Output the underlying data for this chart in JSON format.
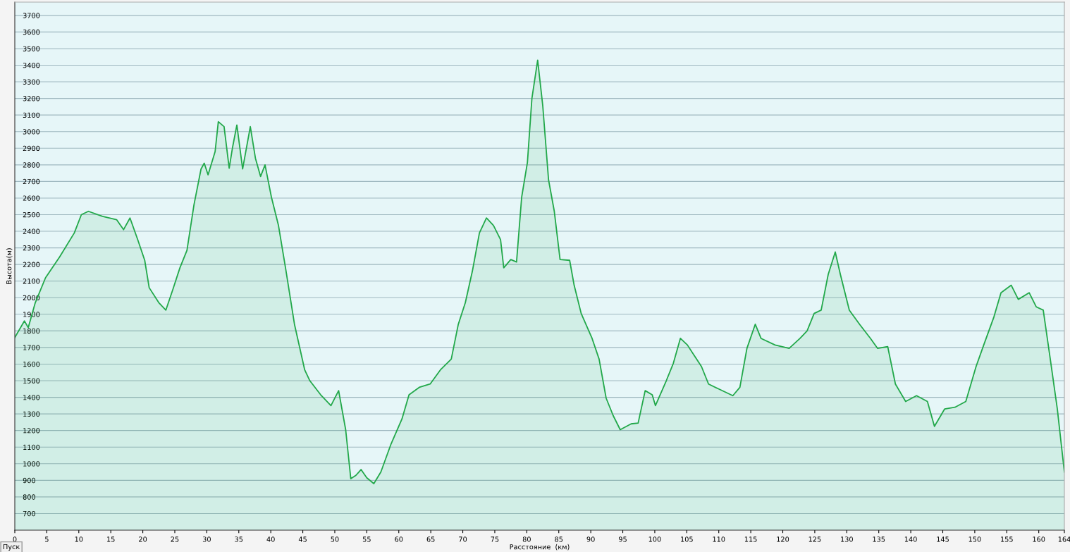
{
  "chart_data": {
    "type": "area",
    "xlabel": "Расстояние  (км)",
    "ylabel": "Высота(м)",
    "annotations": [
      "Пуск"
    ],
    "x": [
      0,
      1.5,
      2.1,
      3.2,
      4.8,
      7,
      9.3,
      10.4,
      11.5,
      13.7,
      15.9,
      17,
      18,
      19.2,
      20.3,
      21,
      22.5,
      23.6,
      24.7,
      25.8,
      26.9,
      28,
      29.1,
      29.6,
      30.2,
      31.3,
      31.8,
      32.7,
      33.5,
      34,
      34.7,
      35.6,
      36.8,
      37.6,
      38.4,
      39.1,
      40.1,
      41.2,
      42.3,
      43.7,
      45.3,
      46.1,
      47.8,
      49.4,
      50.6,
      51.7,
      52.5,
      53.3,
      54.1,
      55,
      56.1,
      57.2,
      58.8,
      60.5,
      61.6,
      63.2,
      64.9,
      66.5,
      68.2,
      69.3,
      70.4,
      71.5,
      72.6,
      73.7,
      74.8,
      75.9,
      76.4,
      77.5,
      78.4,
      79.2,
      80.1,
      80.8,
      81.7,
      82.5,
      83.4,
      84.3,
      85.2,
      86.7,
      87.4,
      88.5,
      90.2,
      91.3,
      92.4,
      93.5,
      94.6,
      96.3,
      97.4,
      98.5,
      99.6,
      100.1,
      101.8,
      102.9,
      104,
      105.1,
      106.2,
      107.3,
      108.4,
      110,
      112.2,
      113.3,
      114.4,
      115.7,
      116.6,
      118.8,
      121,
      122.7,
      123.8,
      124.9,
      126,
      127.1,
      128.2,
      129,
      130.4,
      132,
      133.7,
      134.8,
      136.4,
      137.6,
      139.2,
      140.9,
      142.6,
      143.7,
      145.3,
      146.9,
      148.6,
      150.2,
      151.4,
      153,
      154.1,
      155.7,
      156.8,
      158.5,
      159.6,
      160.7,
      161.8,
      162.9,
      164
    ],
    "series": [
      {
        "color": "#22a84a",
        "values": [
          1760,
          1860,
          1820,
          1970,
          2120,
          2245,
          2390,
          2500,
          2520,
          2490,
          2470,
          2410,
          2480,
          2350,
          2225,
          2060,
          1970,
          1925,
          2050,
          2180,
          2285,
          2560,
          2775,
          2810,
          2740,
          2880,
          3060,
          3030,
          2780,
          2900,
          3040,
          2775,
          3030,
          2840,
          2730,
          2800,
          2605,
          2435,
          2180,
          1840,
          1565,
          1500,
          1415,
          1350,
          1440,
          1205,
          910,
          930,
          965,
          915,
          880,
          950,
          1120,
          1270,
          1415,
          1460,
          1480,
          1565,
          1630,
          1840,
          1970,
          2160,
          2390,
          2480,
          2435,
          2350,
          2180,
          2230,
          2215,
          2605,
          2815,
          3200,
          3430,
          3155,
          2710,
          2520,
          2230,
          2225,
          2075,
          1905,
          1755,
          1630,
          1395,
          1290,
          1205,
          1240,
          1245,
          1440,
          1415,
          1350,
          1500,
          1605,
          1755,
          1715,
          1650,
          1585,
          1480,
          1450,
          1410,
          1460,
          1695,
          1840,
          1755,
          1715,
          1695,
          1755,
          1800,
          1905,
          1925,
          2140,
          2275,
          2140,
          1925,
          1840,
          1755,
          1695,
          1705,
          1480,
          1375,
          1410,
          1375,
          1225,
          1330,
          1340,
          1375,
          1585,
          1715,
          1885,
          2030,
          2075,
          1990,
          2030,
          1945,
          1925,
          1630,
          1330,
          950
        ]
      }
    ],
    "xlim": [
      0,
      164
    ],
    "ylim": [
      600,
      3780
    ],
    "xticks": [
      0,
      5,
      10,
      15,
      20,
      25,
      30,
      35,
      40,
      45,
      50,
      55,
      60,
      65,
      70,
      75,
      80,
      85,
      90,
      95,
      100,
      105,
      110,
      115,
      120,
      125,
      130,
      135,
      140,
      145,
      150,
      155,
      160,
      164
    ],
    "yticks": [
      700,
      800,
      900,
      1000,
      1100,
      1200,
      1300,
      1400,
      1500,
      1600,
      1700,
      1800,
      1900,
      2000,
      2100,
      2200,
      2300,
      2400,
      2500,
      2600,
      2700,
      2800,
      2900,
      3000,
      3100,
      3200,
      3300,
      3400,
      3500,
      3600,
      3700
    ],
    "grid": "y",
    "legend": false
  }
}
